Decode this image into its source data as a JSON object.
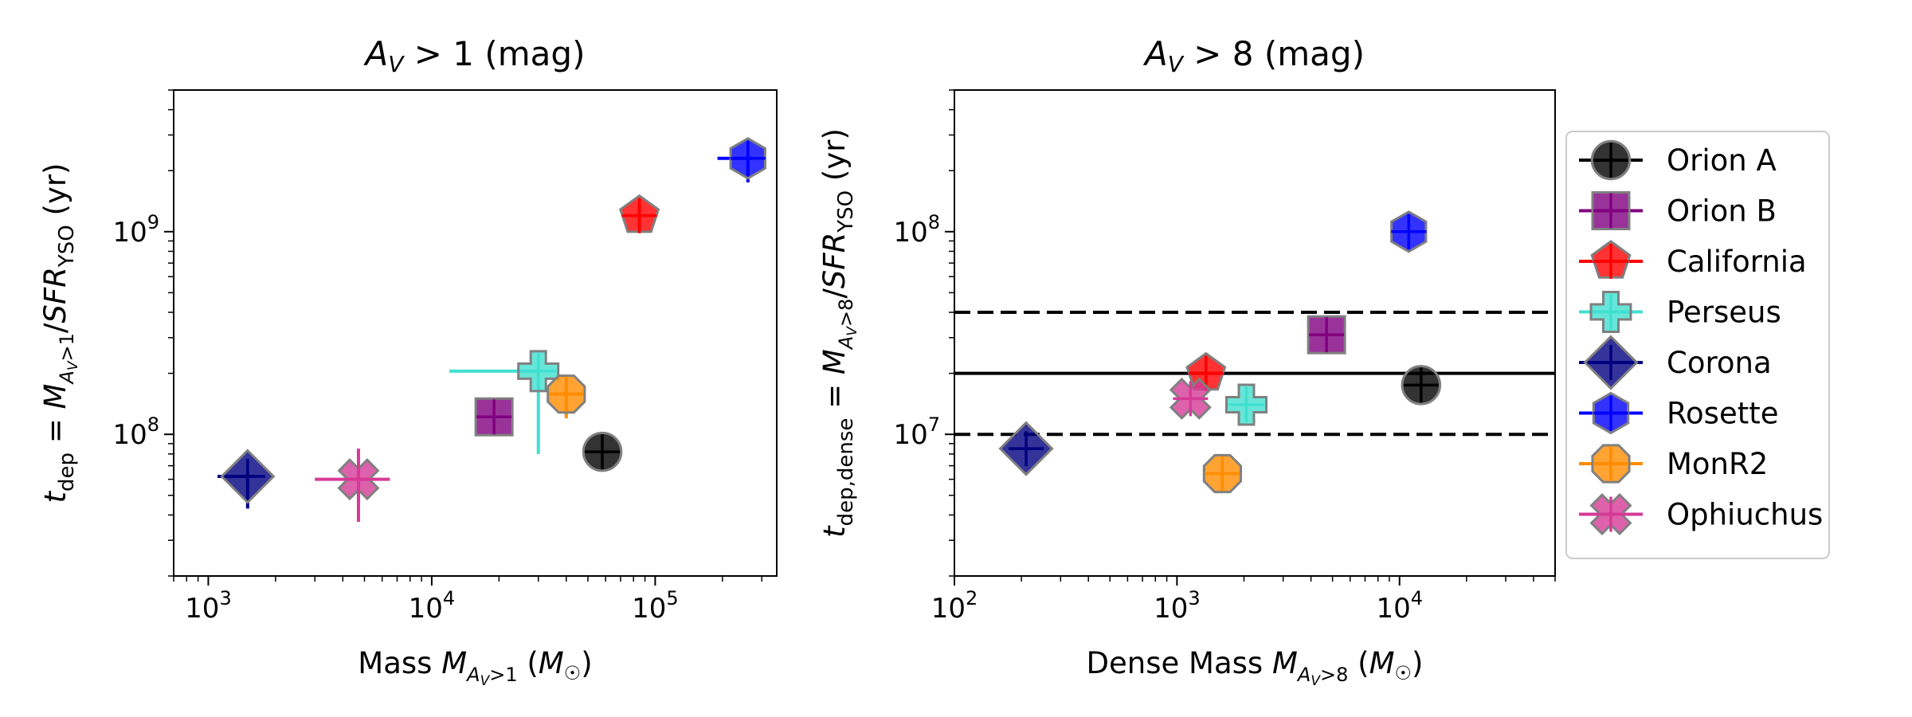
{
  "chart_data": [
    {
      "type": "scatter",
      "title": "A_V > 1 (mag)",
      "xlabel": "Mass M_{A_V>1} (M_☉)",
      "ylabel": "t_dep = M_{A_V>1}/SFR_YSO (yr)",
      "xscale": "log",
      "yscale": "log",
      "xlim": [
        700,
        350000
      ],
      "ylim": [
        20000000,
        5000000000
      ],
      "x_ticks": [
        "10^3",
        "10^4",
        "10^5"
      ],
      "y_ticks": [
        "10^8",
        "10^9"
      ],
      "points": [
        {
          "name": "Orion A",
          "x": 58000,
          "y": 82000000
        },
        {
          "name": "Orion B",
          "x": 19000,
          "y": 122000000
        },
        {
          "name": "California",
          "x": 85000,
          "y": 1200000000,
          "yerr": [
            1000000000,
            1380000000
          ]
        },
        {
          "name": "Perseus",
          "x": 30000,
          "y": 205000000,
          "xerr": [
            12000,
            31000
          ],
          "yerr": [
            80000000,
            205000000
          ]
        },
        {
          "name": "Corona",
          "x": 1500,
          "y": 62000000,
          "xerr": [
            1100,
            1600
          ],
          "yerr": [
            43000000,
            65000000
          ]
        },
        {
          "name": "Rosette",
          "x": 260000,
          "y": 2300000000,
          "xerr": [
            190000,
            270000
          ],
          "yerr": [
            1750000000,
            2400000000
          ]
        },
        {
          "name": "MonR2",
          "x": 40000,
          "y": 158000000,
          "xerr": [
            35000,
            47000
          ],
          "yerr": [
            120000000,
            165000000
          ]
        },
        {
          "name": "Ophiuchus",
          "x": 4700,
          "y": 60000000,
          "xerr": [
            3000,
            6500
          ],
          "yerr": [
            37000000,
            85000000
          ]
        }
      ]
    },
    {
      "type": "scatter",
      "title": "A_V > 8 (mag)",
      "xlabel": "Dense Mass M_{A_V>8} (M_☉)",
      "ylabel": "t_dep,dense = M_{A_V>8}/SFR_YSO (yr)",
      "xscale": "log",
      "yscale": "log",
      "xlim": [
        100,
        50000
      ],
      "ylim": [
        2000000,
        500000000
      ],
      "x_ticks": [
        "10^2",
        "10^3",
        "10^4"
      ],
      "y_ticks": [
        "10^7",
        "10^8"
      ],
      "hlines": [
        {
          "y": 20000000,
          "style": "solid"
        },
        {
          "y": 40000000,
          "style": "dashed"
        },
        {
          "y": 10000000,
          "style": "dashed"
        }
      ],
      "points": [
        {
          "name": "Orion A",
          "x": 12500,
          "y": 17500000
        },
        {
          "name": "Orion B",
          "x": 4700,
          "y": 31000000
        },
        {
          "name": "California",
          "x": 1350,
          "y": 20000000
        },
        {
          "name": "Perseus",
          "x": 2050,
          "y": 14000000
        },
        {
          "name": "Corona",
          "x": 210,
          "y": 8500000
        },
        {
          "name": "Rosette",
          "x": 11000,
          "y": 100000000
        },
        {
          "name": "MonR2",
          "x": 1600,
          "y": 6400000
        },
        {
          "name": "Ophiuchus",
          "x": 1150,
          "y": 15000000
        }
      ]
    }
  ],
  "legend": {
    "position": "right",
    "entries": [
      {
        "name": "Orion A",
        "marker": "circle",
        "color": "#000000",
        "line": "#000000"
      },
      {
        "name": "Orion B",
        "marker": "square",
        "color": "#800080",
        "line": "#800080"
      },
      {
        "name": "California",
        "marker": "pentagon",
        "color": "#ff0000",
        "line": "#ff0000"
      },
      {
        "name": "Perseus",
        "marker": "plus",
        "color": "#40e0d0",
        "line": "#40e0d0"
      },
      {
        "name": "Corona",
        "marker": "diamond",
        "color": "#000080",
        "line": "#000080"
      },
      {
        "name": "Rosette",
        "marker": "hexagon",
        "color": "#0000ff",
        "line": "#0000ff"
      },
      {
        "name": "MonR2",
        "marker": "octagon",
        "color": "#ff8c00",
        "line": "#ff8c00"
      },
      {
        "name": "Ophiuchus",
        "marker": "x",
        "color": "#d63a96",
        "line": "#d63a96"
      }
    ]
  }
}
